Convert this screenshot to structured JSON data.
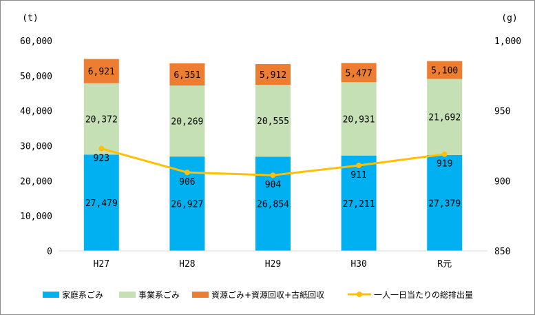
{
  "chart_data": {
    "type": "bar",
    "stacked": true,
    "categories": [
      "H27",
      "H28",
      "H29",
      "H30",
      "R元"
    ],
    "y_left": {
      "unit_label": "(t)",
      "ylim": [
        0,
        60000
      ],
      "ticks": [
        "0",
        "10,000",
        "20,000",
        "30,000",
        "40,000",
        "50,000",
        "60,000"
      ]
    },
    "y_right": {
      "unit_label": "(g)",
      "ylim": [
        850,
        1000
      ],
      "ticks": [
        "850",
        "900",
        "950",
        "1,000"
      ]
    },
    "series": [
      {
        "name": "家庭系ごみ",
        "color": "#00b0f0",
        "axis": "left",
        "values": [
          27479,
          26927,
          26854,
          27211,
          27379
        ],
        "labels": [
          "27,479",
          "26,927",
          "26,854",
          "27,211",
          "27,379"
        ]
      },
      {
        "name": "事業系ごみ",
        "color": "#c5e0b4",
        "axis": "left",
        "values": [
          20372,
          20269,
          20555,
          20931,
          21692
        ],
        "labels": [
          "20,372",
          "20,269",
          "20,555",
          "20,931",
          "21,692"
        ]
      },
      {
        "name": "資源ごみ+資源回収+古紙回収",
        "color": "#ed7d31",
        "axis": "left",
        "values": [
          6921,
          6351,
          5912,
          5477,
          5100
        ],
        "labels": [
          "6,921",
          "6,351",
          "5,912",
          "5,477",
          "5,100"
        ]
      },
      {
        "name": "一人一日当たりの総排出量",
        "color": "#ffc000",
        "axis": "right",
        "type": "line",
        "values": [
          923,
          906,
          904,
          911,
          919
        ],
        "labels": [
          "923",
          "906",
          "904",
          "911",
          "919"
        ]
      }
    ],
    "grid": false,
    "legend": "bottom"
  }
}
